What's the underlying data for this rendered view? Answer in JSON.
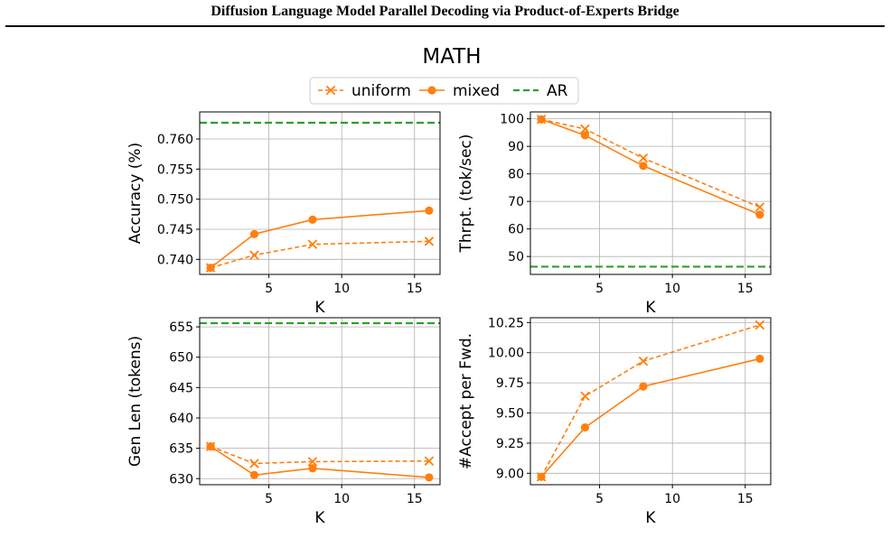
{
  "paper": {
    "running_header": "Diffusion Language Model Parallel Decoding via Product-of-Experts Bridge",
    "figure_caption": ""
  },
  "figure": {
    "title": "MATH",
    "legend": [
      {
        "label": "uniform",
        "style": "dashed-x"
      },
      {
        "label": "mixed",
        "style": "solid-o"
      },
      {
        "label": "AR",
        "style": "dashed-green"
      }
    ],
    "colors": {
      "series": "#ff7f0e",
      "ar": "#2ca02c",
      "grid": "#b0b0b0"
    }
  },
  "chart_data": [
    {
      "type": "line",
      "xlabel": "K",
      "ylabel": "Accuracy (%)",
      "x": [
        1,
        4,
        8,
        16
      ],
      "xlim": [
        0.25,
        16.75
      ],
      "ylim": [
        0.7375,
        0.7645
      ],
      "xticks": [
        5,
        10,
        15
      ],
      "yticks": [
        0.74,
        0.745,
        0.75,
        0.755,
        0.76
      ],
      "ytick_labels": [
        "0.740",
        "0.745",
        "0.750",
        "0.755",
        "0.760"
      ],
      "series": [
        {
          "name": "uniform",
          "values": [
            0.7386,
            0.7407,
            0.7425,
            0.743
          ]
        },
        {
          "name": "mixed",
          "values": [
            0.7386,
            0.7442,
            0.7466,
            0.7481
          ]
        }
      ],
      "ar": 0.7627,
      "grid": true
    },
    {
      "type": "line",
      "xlabel": "K",
      "ylabel": "Thrpt. (tok/sec)",
      "x": [
        1,
        4,
        8,
        16
      ],
      "xlim": [
        0.25,
        16.75
      ],
      "ylim": [
        43.5,
        102.5
      ],
      "xticks": [
        5,
        10,
        15
      ],
      "yticks": [
        50,
        60,
        70,
        80,
        90,
        100
      ],
      "ytick_labels": [
        "50",
        "60",
        "70",
        "80",
        "90",
        "100"
      ],
      "series": [
        {
          "name": "uniform",
          "values": [
            99.8,
            96.3,
            85.7,
            67.9
          ]
        },
        {
          "name": "mixed",
          "values": [
            99.8,
            94.0,
            82.9,
            65.2
          ]
        }
      ],
      "ar": 46.3,
      "grid": true
    },
    {
      "type": "line",
      "xlabel": "K",
      "ylabel": "Gen Len (tokens)",
      "x": [
        1,
        4,
        8,
        16
      ],
      "xlim": [
        0.25,
        16.75
      ],
      "ylim": [
        629.0,
        656.5
      ],
      "xticks": [
        5,
        10,
        15
      ],
      "yticks": [
        630,
        635,
        640,
        645,
        650,
        655
      ],
      "ytick_labels": [
        "630",
        "635",
        "640",
        "645",
        "650",
        "655"
      ],
      "series": [
        {
          "name": "uniform",
          "values": [
            635.3,
            632.5,
            632.8,
            632.9
          ]
        },
        {
          "name": "mixed",
          "values": [
            635.3,
            630.6,
            631.7,
            630.2
          ]
        }
      ],
      "ar": 655.6,
      "grid": true
    },
    {
      "type": "line",
      "xlabel": "K",
      "ylabel": "#Accept per Fwd.",
      "x": [
        1,
        4,
        8,
        16
      ],
      "xlim": [
        0.25,
        16.75
      ],
      "ylim": [
        8.905,
        10.29
      ],
      "xticks": [
        5,
        10,
        15
      ],
      "yticks": [
        9.0,
        9.25,
        9.5,
        9.75,
        10.0,
        10.25
      ],
      "ytick_labels": [
        "9.00",
        "9.25",
        "9.50",
        "9.75",
        "10.00",
        "10.25"
      ],
      "series": [
        {
          "name": "uniform",
          "values": [
            8.97,
            9.64,
            9.93,
            10.23
          ]
        },
        {
          "name": "mixed",
          "values": [
            8.97,
            9.38,
            9.72,
            9.95
          ]
        }
      ],
      "ar": null,
      "grid": true
    }
  ]
}
